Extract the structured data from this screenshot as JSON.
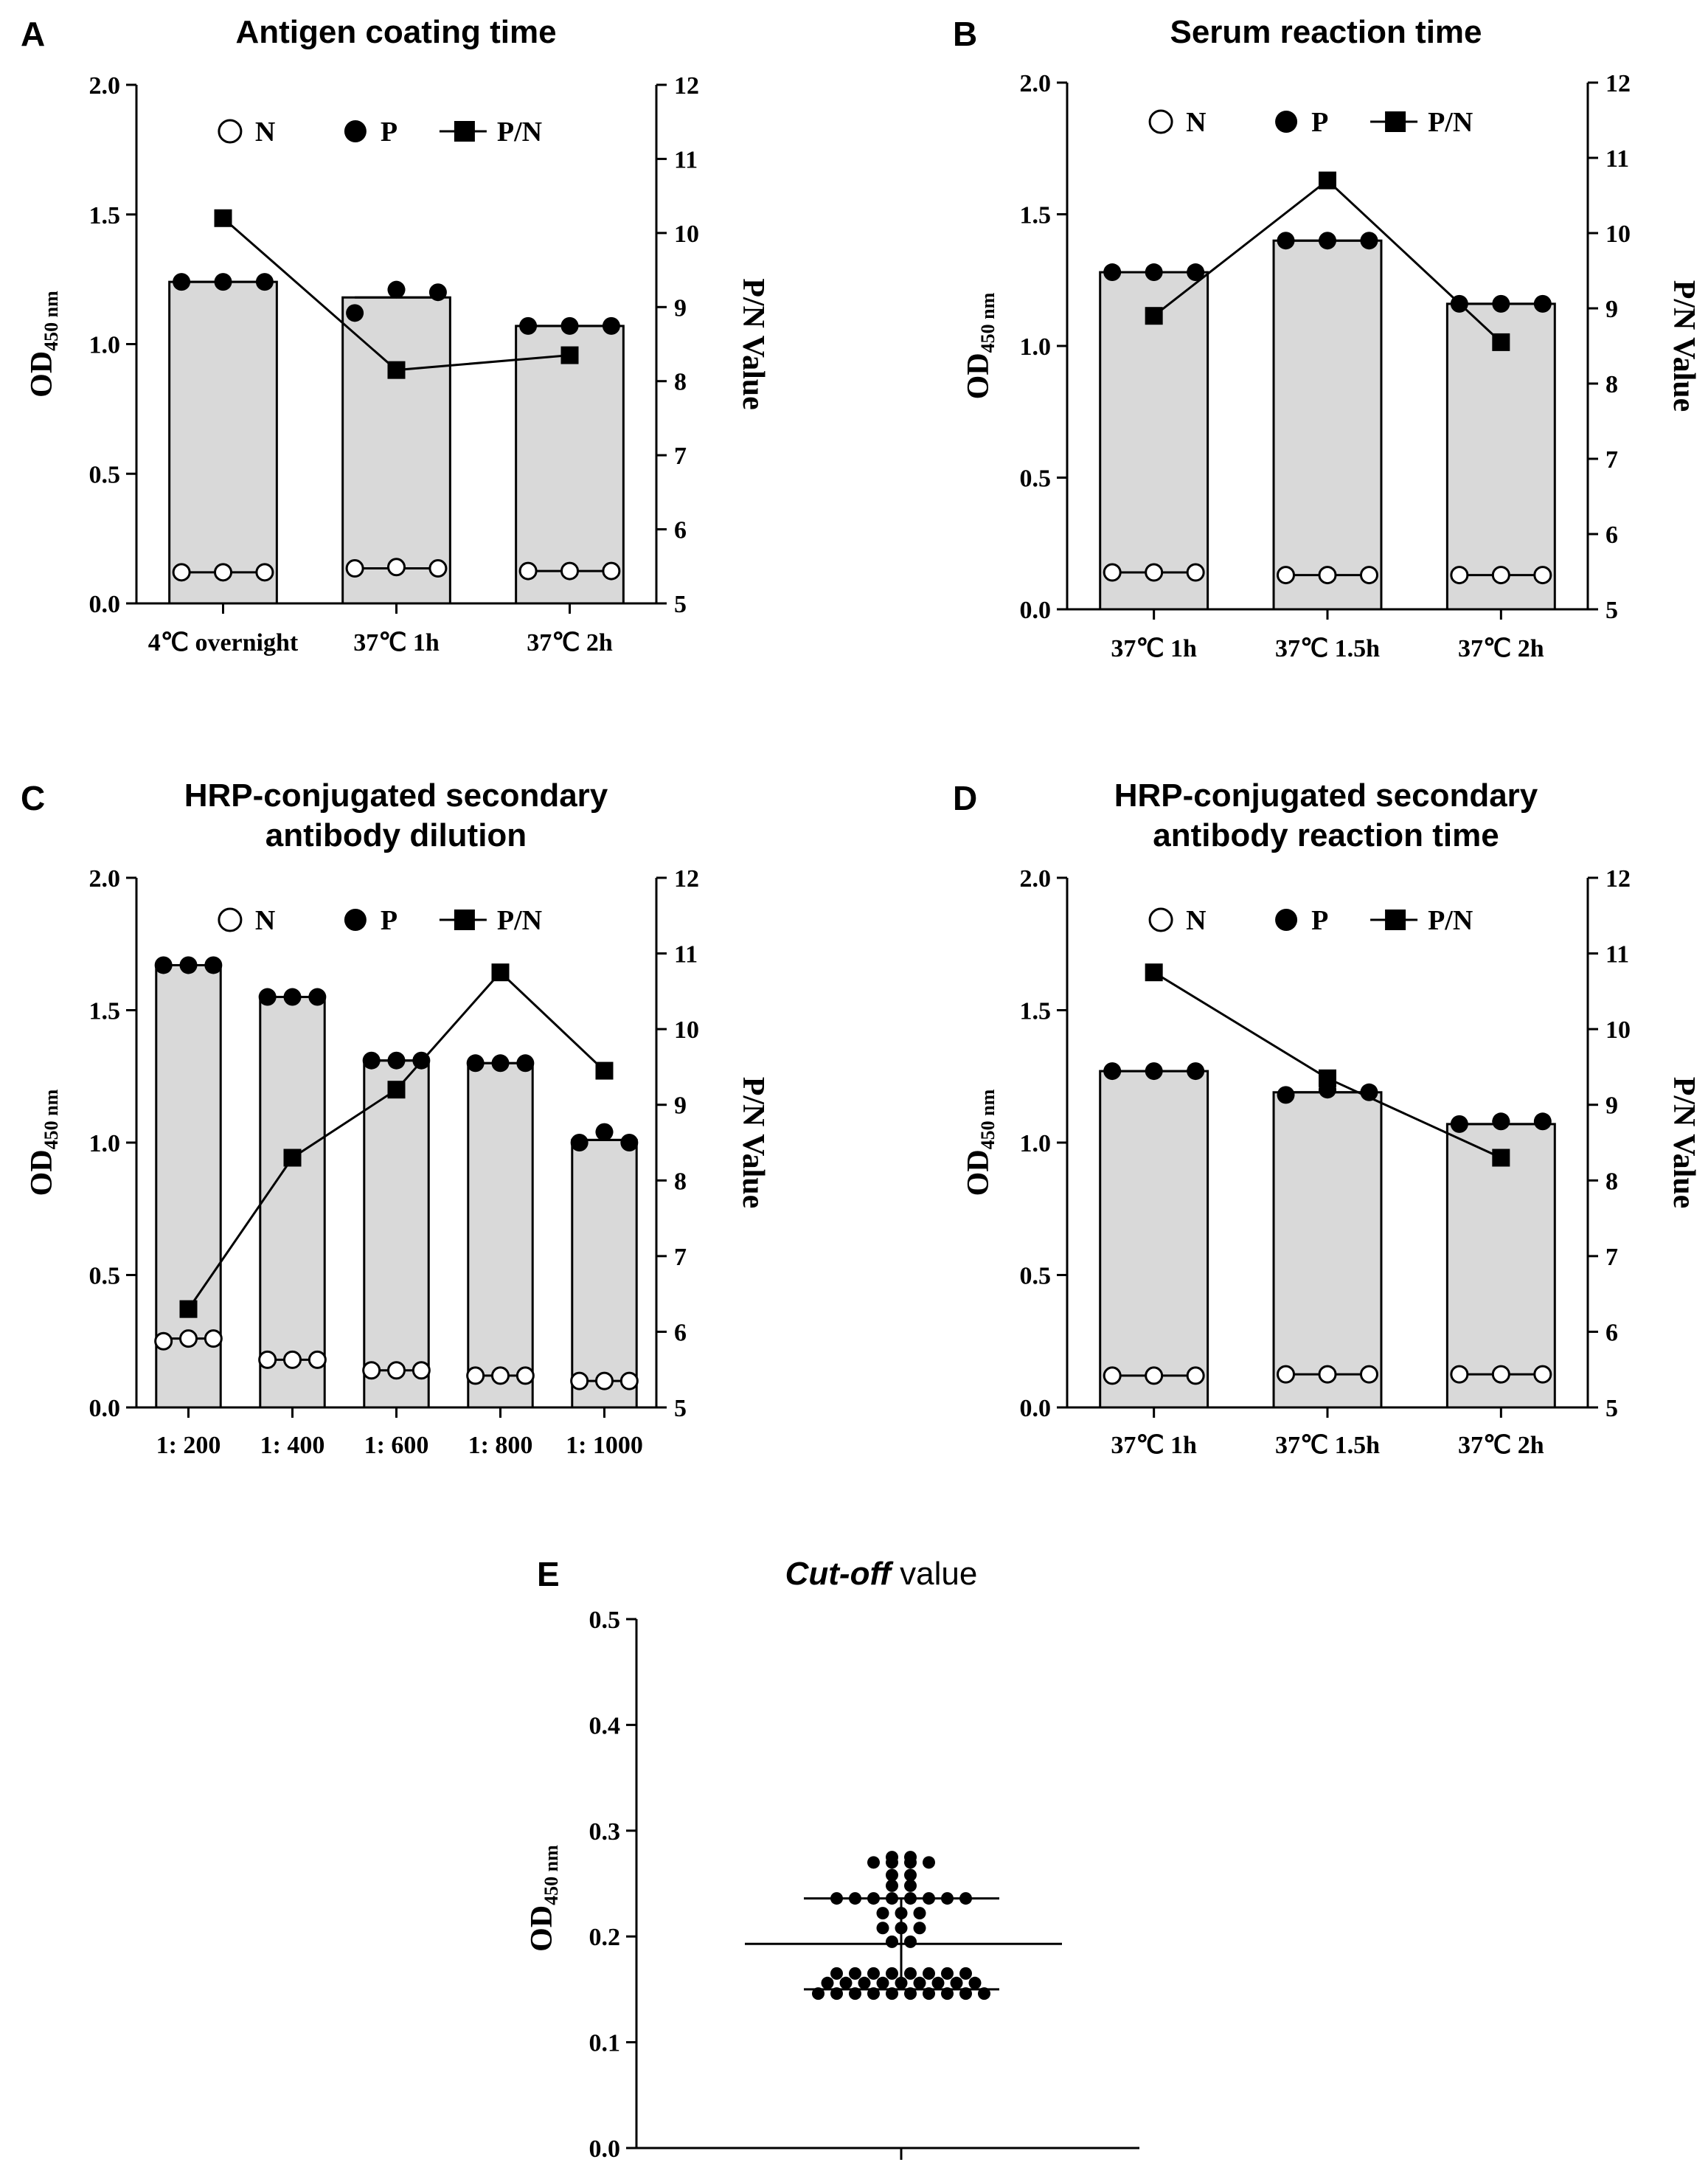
{
  "chart_data": [
    {
      "panel": "A",
      "type": "bar",
      "title": "Antigen coating  time",
      "categories": [
        "4℃ overnight",
        "37℃ 1h",
        "37℃ 2h"
      ],
      "ylabel_main": "OD",
      "ylabel_sub": "450 nm",
      "y2label": "P/N Value",
      "ylim": [
        0,
        2.0
      ],
      "yticks": [
        "0.0",
        "0.5",
        "1.0",
        "1.5",
        "2.0"
      ],
      "y2lim": [
        5,
        12
      ],
      "y2ticks": [
        "5",
        "6",
        "7",
        "8",
        "9",
        "10",
        "11",
        "12"
      ],
      "legend": [
        "N",
        "P",
        "P/N"
      ],
      "legend_position": "top",
      "series": [
        {
          "name": "P",
          "mean": [
            1.24,
            1.18,
            1.07
          ],
          "points": [
            [
              1.24,
              1.24,
              1.24
            ],
            [
              1.12,
              1.21,
              1.2
            ],
            [
              1.07,
              1.07,
              1.07
            ]
          ]
        },
        {
          "name": "N",
          "mean": [
            0.12,
            0.135,
            0.125
          ],
          "points": [
            [
              0.12,
              0.12,
              0.12
            ],
            [
              0.135,
              0.14,
              0.135
            ],
            [
              0.125,
              0.125,
              0.125
            ]
          ]
        },
        {
          "name": "P/N",
          "axis": "right",
          "values": [
            10.2,
            8.15,
            8.35
          ]
        }
      ]
    },
    {
      "panel": "B",
      "type": "bar",
      "title": "Serum reaction time",
      "categories": [
        "37℃ 1h",
        "37℃ 1.5h",
        "37℃ 2h"
      ],
      "ylabel_main": "OD",
      "ylabel_sub": "450 nm",
      "y2label": "P/N Value",
      "ylim": [
        0,
        2.0
      ],
      "yticks": [
        "0.0",
        "0.5",
        "1.0",
        "1.5",
        "2.0"
      ],
      "y2lim": [
        5,
        12
      ],
      "y2ticks": [
        "5",
        "6",
        "7",
        "8",
        "9",
        "10",
        "11",
        "12"
      ],
      "legend": [
        "N",
        "P",
        "P/N"
      ],
      "legend_position": "top",
      "series": [
        {
          "name": "P",
          "mean": [
            1.28,
            1.4,
            1.16
          ],
          "points": [
            [
              1.28,
              1.28,
              1.28
            ],
            [
              1.4,
              1.4,
              1.4
            ],
            [
              1.16,
              1.16,
              1.16
            ]
          ]
        },
        {
          "name": "N",
          "mean": [
            0.14,
            0.13,
            0.13
          ],
          "points": [
            [
              0.14,
              0.14,
              0.14
            ],
            [
              0.13,
              0.13,
              0.13
            ],
            [
              0.13,
              0.13,
              0.13
            ]
          ]
        },
        {
          "name": "P/N",
          "axis": "right",
          "values": [
            8.9,
            10.7,
            8.55
          ]
        }
      ]
    },
    {
      "panel": "C",
      "type": "bar",
      "title_lines": [
        "HRP-conjugated secondary",
        "antibody dilution"
      ],
      "categories": [
        "1: 200",
        "1: 400",
        "1: 600",
        "1: 800",
        "1: 1000"
      ],
      "ylabel_main": "OD",
      "ylabel_sub": "450 nm",
      "y2label": "P/N Value",
      "ylim": [
        0,
        2.0
      ],
      "yticks": [
        "0.0",
        "0.5",
        "1.0",
        "1.5",
        "2.0"
      ],
      "y2lim": [
        5,
        12
      ],
      "y2ticks": [
        "5",
        "6",
        "7",
        "8",
        "9",
        "10",
        "11",
        "12"
      ],
      "legend": [
        "N",
        "P",
        "P/N"
      ],
      "legend_position": "top",
      "series": [
        {
          "name": "P",
          "mean": [
            1.67,
            1.55,
            1.31,
            1.3,
            1.01
          ],
          "points": [
            [
              1.67,
              1.67,
              1.67
            ],
            [
              1.55,
              1.55,
              1.55
            ],
            [
              1.31,
              1.31,
              1.31
            ],
            [
              1.3,
              1.3,
              1.3
            ],
            [
              1.0,
              1.04,
              1.0
            ]
          ]
        },
        {
          "name": "N",
          "mean": [
            0.26,
            0.18,
            0.14,
            0.12,
            0.1
          ],
          "points": [
            [
              0.25,
              0.26,
              0.26
            ],
            [
              0.18,
              0.18,
              0.18
            ],
            [
              0.14,
              0.14,
              0.14
            ],
            [
              0.12,
              0.12,
              0.12
            ],
            [
              0.1,
              0.1,
              0.1
            ]
          ]
        },
        {
          "name": "P/N",
          "axis": "right",
          "values": [
            6.3,
            8.3,
            9.2,
            10.75,
            9.45
          ]
        }
      ]
    },
    {
      "panel": "D",
      "type": "bar",
      "title_lines": [
        "HRP-conjugated secondary",
        "antibody reaction time"
      ],
      "categories": [
        "37℃ 1h",
        "37℃ 1.5h",
        "37℃ 2h"
      ],
      "ylabel_main": "OD",
      "ylabel_sub": "450 nm",
      "y2label": "P/N Value",
      "ylim": [
        0,
        2.0
      ],
      "yticks": [
        "0.0",
        "0.5",
        "1.0",
        "1.5",
        "2.0"
      ],
      "y2lim": [
        5,
        12
      ],
      "y2ticks": [
        "5",
        "6",
        "7",
        "8",
        "9",
        "10",
        "11",
        "12"
      ],
      "legend": [
        "N",
        "P",
        "P/N"
      ],
      "legend_position": "top",
      "series": [
        {
          "name": "P",
          "mean": [
            1.27,
            1.19,
            1.07
          ],
          "points": [
            [
              1.27,
              1.27,
              1.27
            ],
            [
              1.18,
              1.2,
              1.19
            ],
            [
              1.07,
              1.08,
              1.08
            ]
          ]
        },
        {
          "name": "N",
          "mean": [
            0.12,
            0.125,
            0.125
          ],
          "points": [
            [
              0.12,
              0.12,
              0.12
            ],
            [
              0.125,
              0.125,
              0.125
            ],
            [
              0.125,
              0.125,
              0.125
            ]
          ]
        },
        {
          "name": "P/N",
          "axis": "right",
          "values": [
            10.75,
            9.35,
            8.3
          ]
        }
      ]
    },
    {
      "panel": "E",
      "type": "scatter",
      "title_italic": "Cut-off",
      "title_rest": " value",
      "ylabel_main": "OD",
      "ylabel_sub": "450 nm",
      "ylim": [
        0,
        0.5
      ],
      "yticks": [
        "0.0",
        "0.1",
        "0.2",
        "0.3",
        "0.4",
        "0.5"
      ],
      "mean": 0.193,
      "sd": 0.043,
      "rows": [
        {
          "y": 0.275,
          "n": 2
        },
        {
          "y": 0.27,
          "n": 4
        },
        {
          "y": 0.258,
          "n": 2
        },
        {
          "y": 0.248,
          "n": 2
        },
        {
          "y": 0.236,
          "n": 8
        },
        {
          "y": 0.222,
          "n": 3
        },
        {
          "y": 0.208,
          "n": 3
        },
        {
          "y": 0.195,
          "n": 2
        },
        {
          "y": 0.165,
          "n": 8
        },
        {
          "y": 0.156,
          "n": 9
        },
        {
          "y": 0.146,
          "n": 10
        }
      ]
    }
  ]
}
